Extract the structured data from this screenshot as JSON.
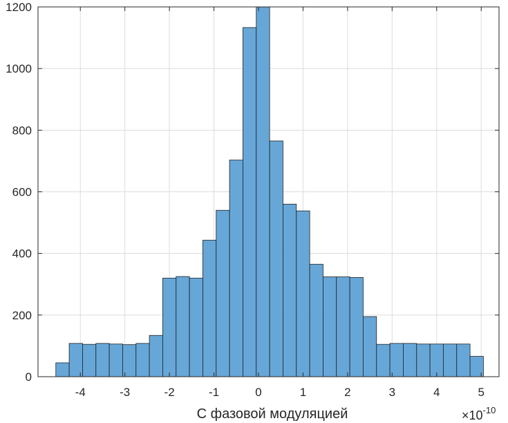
{
  "chart_data": {
    "type": "bar",
    "title": "",
    "xlabel": "С фазовой модуляцией",
    "ylabel": "",
    "x_exponent": {
      "times": "×10",
      "power": "-10"
    },
    "xlim": [
      -4.95,
      5.4
    ],
    "ylim": [
      0,
      1200
    ],
    "grid": true,
    "bar_color": "#5fa2d6",
    "edge_color": "#1f1f1f",
    "bin_edges": [
      -4.55,
      -4.25,
      -3.95,
      -3.65,
      -3.35,
      -3.05,
      -2.75,
      -2.45,
      -2.15,
      -1.85,
      -1.55,
      -1.25,
      -0.95,
      -0.65,
      -0.35,
      -0.05,
      0.25,
      0.55,
      0.85,
      1.15,
      1.45,
      1.75,
      2.05,
      2.35,
      2.65,
      2.95,
      3.25,
      3.55,
      3.85,
      4.15,
      4.45,
      4.75,
      5.05
    ],
    "values": [
      45,
      108,
      105,
      108,
      106,
      104,
      108,
      134,
      320,
      325,
      320,
      443,
      540,
      703,
      1133,
      1200,
      765,
      560,
      538,
      365,
      324,
      324,
      322,
      195,
      105,
      108,
      108,
      106,
      106,
      106,
      106,
      66
    ],
    "xticks": [
      -4,
      -3,
      -2,
      -1,
      0,
      1,
      2,
      3,
      4,
      5
    ],
    "xtick_labels": [
      "-4",
      "-3",
      "-2",
      "-1",
      "0",
      "1",
      "2",
      "3",
      "4",
      "5"
    ],
    "yticks": [
      0,
      200,
      400,
      600,
      800,
      1000,
      1200
    ],
    "ytick_labels": [
      "0",
      "200",
      "400",
      "600",
      "800",
      "1000",
      "1200"
    ]
  }
}
